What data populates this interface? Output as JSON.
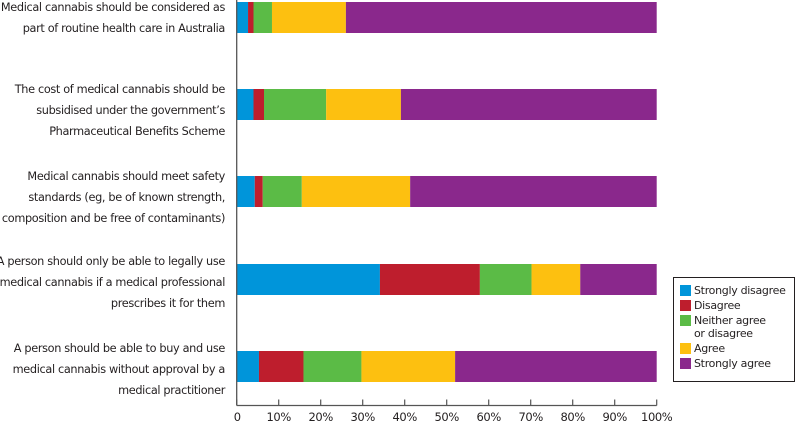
{
  "chart_data": {
    "type": "bar",
    "orientation": "horizontal",
    "stacked": true,
    "title": "",
    "xlabel": "",
    "ylabel": "",
    "xlim": [
      0,
      100
    ],
    "x_ticks": [
      "0",
      "10%",
      "20%",
      "30%",
      "40%",
      "50%",
      "60%",
      "70%",
      "80%",
      "90%",
      "100%"
    ],
    "grid": false,
    "legend_position": "right",
    "categories": [
      [
        "Medical cannabis should be considered as",
        "part of routine health care in Australia"
      ],
      [
        "The cost of medical cannabis should be",
        "subsidised under the government’s",
        "Pharmaceutical Benefits Scheme"
      ],
      [
        "Medical cannabis should meet safety",
        "standards (eg, be of known strength,",
        "composition and be free of contaminants)"
      ],
      [
        "A person should only be able to legally use",
        "medical cannabis if a medical professional",
        "prescribes it for them"
      ],
      [
        "A person should be able to buy and use",
        "medical cannabis without approval by a",
        "medical practitioner"
      ]
    ],
    "series": [
      {
        "name": "Strongly disagree",
        "color": "#0095da",
        "values": [
          2.7,
          4.0,
          4.3,
          34.1,
          5.3
        ]
      },
      {
        "name": "Disagree",
        "color": "#be1e2d",
        "values": [
          1.3,
          2.5,
          1.9,
          23.8,
          10.6
        ]
      },
      {
        "name": "Neither agree\nor disagree",
        "color": "#5bbb46",
        "values": [
          4.4,
          14.8,
          9.3,
          12.3,
          13.8
        ]
      },
      {
        "name": "Agree",
        "color": "#fdc010",
        "values": [
          17.6,
          17.8,
          25.8,
          11.6,
          22.3
        ]
      },
      {
        "name": "Strongly agree",
        "color": "#8a288c",
        "values": [
          74.0,
          60.9,
          58.7,
          18.2,
          48.0
        ]
      }
    ]
  }
}
